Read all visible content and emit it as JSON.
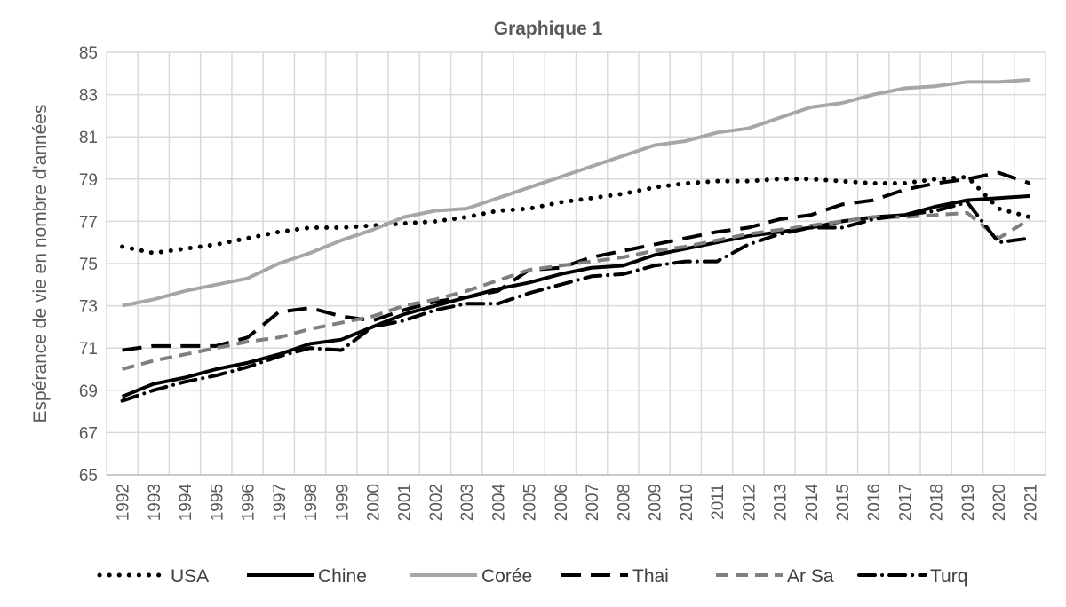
{
  "chart_data": {
    "type": "line",
    "title": "Graphique 1",
    "ylabel": "Espérance de vie en nombre d'années",
    "xlabel": "",
    "ylim": [
      65,
      85
    ],
    "yticks": [
      65,
      67,
      69,
      71,
      73,
      75,
      77,
      79,
      81,
      83,
      85
    ],
    "grid": true,
    "legend_position": "bottom",
    "categories": [
      "1992",
      "1993",
      "1994",
      "1995",
      "1996",
      "1997",
      "1998",
      "1999",
      "2000",
      "2001",
      "2002",
      "2003",
      "2004",
      "2005",
      "2006",
      "2007",
      "2008",
      "2009",
      "2010",
      "2011",
      "2012",
      "2013",
      "2014",
      "2015",
      "2016",
      "2017",
      "2018",
      "2019",
      "2020",
      "2021"
    ],
    "series": [
      {
        "name": "USA",
        "color": "#000000",
        "dash": "dotted",
        "values": [
          75.8,
          75.5,
          75.7,
          75.9,
          76.2,
          76.5,
          76.7,
          76.7,
          76.8,
          76.9,
          77.0,
          77.2,
          77.5,
          77.6,
          77.9,
          78.1,
          78.3,
          78.6,
          78.8,
          78.9,
          78.9,
          79.0,
          79.0,
          78.9,
          78.8,
          78.8,
          79.0,
          79.1,
          77.6,
          77.2
        ]
      },
      {
        "name": "Chine",
        "color": "#000000",
        "dash": "solid",
        "values": [
          68.7,
          69.3,
          69.6,
          70.0,
          70.3,
          70.7,
          71.2,
          71.4,
          72.0,
          72.6,
          73.0,
          73.4,
          73.8,
          74.1,
          74.5,
          74.8,
          74.9,
          75.4,
          75.7,
          76.0,
          76.3,
          76.5,
          76.7,
          77.0,
          77.2,
          77.3,
          77.7,
          78.0,
          78.1,
          78.2
        ]
      },
      {
        "name": "Corée",
        "color": "#a6a6a6",
        "dash": "solid",
        "values": [
          73.0,
          73.3,
          73.7,
          74.0,
          74.3,
          75.0,
          75.5,
          76.1,
          76.6,
          77.2,
          77.5,
          77.6,
          78.1,
          78.6,
          79.1,
          79.6,
          80.1,
          80.6,
          80.8,
          81.2,
          81.4,
          81.9,
          82.4,
          82.6,
          83.0,
          83.3,
          83.4,
          83.6,
          83.6,
          83.7
        ]
      },
      {
        "name": "Thai",
        "color": "#000000",
        "dash": "long-dash",
        "values": [
          70.9,
          71.1,
          71.1,
          71.1,
          71.5,
          72.7,
          72.9,
          72.5,
          72.3,
          72.8,
          73.2,
          73.4,
          73.7,
          74.7,
          74.8,
          75.3,
          75.6,
          75.9,
          76.2,
          76.5,
          76.7,
          77.1,
          77.3,
          77.8,
          78.0,
          78.5,
          78.8,
          79.0,
          79.3,
          78.8
        ]
      },
      {
        "name": "Ar Sa",
        "color": "#7f7f7f",
        "dash": "dash",
        "values": [
          70.0,
          70.4,
          70.7,
          71.0,
          71.3,
          71.5,
          71.9,
          72.2,
          72.5,
          73.0,
          73.3,
          73.7,
          74.2,
          74.7,
          74.9,
          75.1,
          75.3,
          75.6,
          75.8,
          76.1,
          76.4,
          76.6,
          76.8,
          77.0,
          77.2,
          77.2,
          77.3,
          77.4,
          76.2,
          77.1
        ]
      },
      {
        "name": "Turq",
        "color": "#000000",
        "dash": "dash-dot",
        "values": [
          68.5,
          69.0,
          69.4,
          69.7,
          70.1,
          70.6,
          71.0,
          70.9,
          72.0,
          72.3,
          72.8,
          73.1,
          73.1,
          73.6,
          74.0,
          74.4,
          74.5,
          74.9,
          75.1,
          75.1,
          75.9,
          76.4,
          76.7,
          76.7,
          77.1,
          77.3,
          77.5,
          77.9,
          76.0,
          76.2
        ]
      }
    ]
  }
}
